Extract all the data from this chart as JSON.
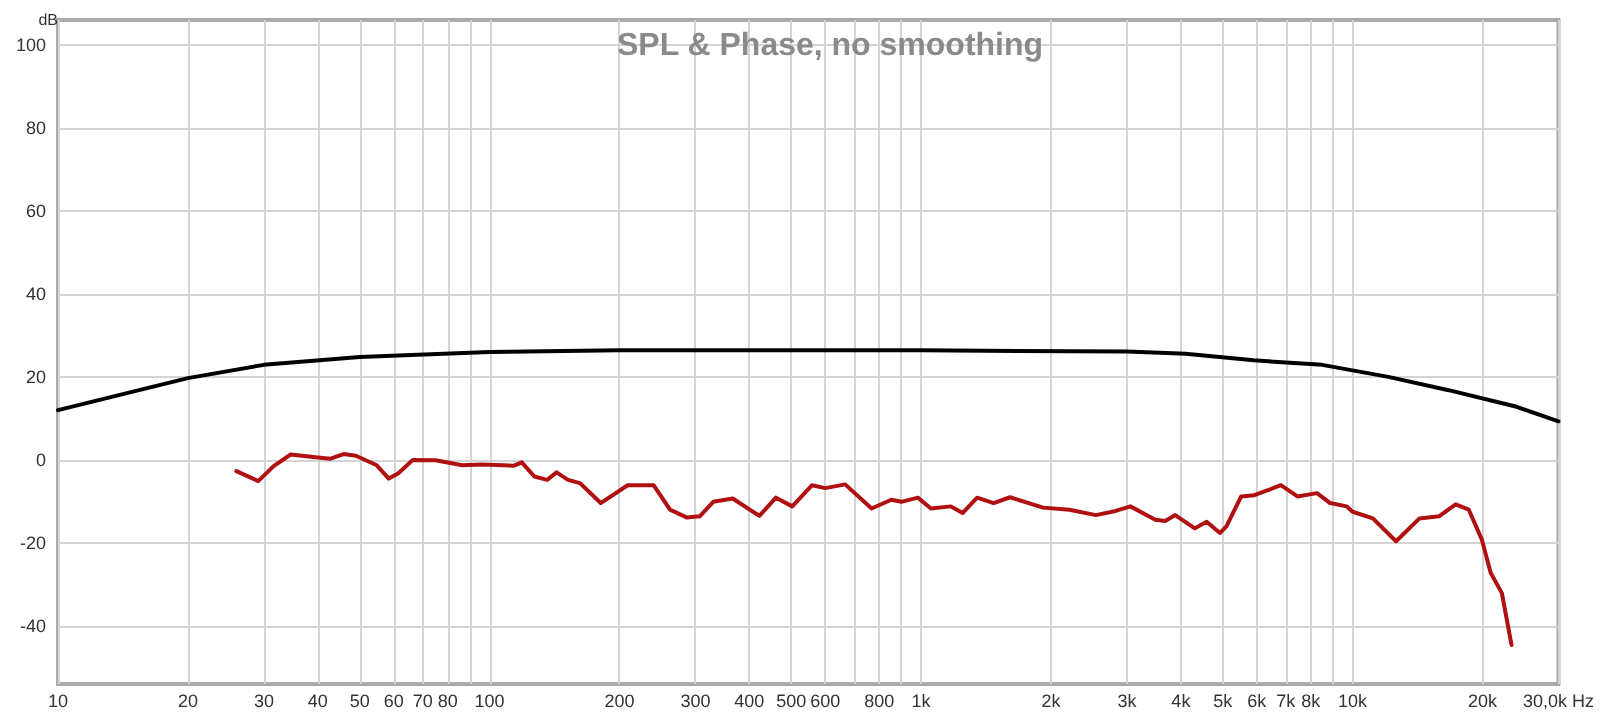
{
  "chart_data": {
    "type": "line",
    "title": "SPL & Phase, no smoothing",
    "ylabel": "dB",
    "log": "x",
    "grid": true,
    "marker": "none",
    "line_style": "solid",
    "xlim": [
      10,
      30000
    ],
    "ylim": [
      -54,
      106
    ],
    "xticks": [
      10,
      20,
      30,
      40,
      50,
      60,
      70,
      80,
      {
        "value": 90,
        "label": null
      },
      100,
      200,
      300,
      400,
      500,
      600,
      {
        "value": 700,
        "label": null
      },
      800,
      {
        "value": 900,
        "label": null
      },
      {
        "value": 1000,
        "label": "1k"
      },
      {
        "value": 2000,
        "label": "2k"
      },
      {
        "value": 3000,
        "label": "3k"
      },
      {
        "value": 4000,
        "label": "4k"
      },
      {
        "value": 5000,
        "label": "5k"
      },
      {
        "value": 6000,
        "label": "6k"
      },
      {
        "value": 7000,
        "label": "7k"
      },
      {
        "value": 8000,
        "label": "8k"
      },
      {
        "value": 9000,
        "label": null
      },
      {
        "value": 10000,
        "label": "10k"
      },
      {
        "value": 20000,
        "label": "20k"
      },
      {
        "value": 30000,
        "label": "30,0k Hz"
      }
    ],
    "yticks": [
      -40,
      -20,
      0,
      20,
      40,
      60,
      80,
      100
    ],
    "series": [
      {
        "color": "#000000",
        "x": [
          10,
          15,
          20,
          30,
          50,
          100,
          200,
          1000,
          3000,
          4100,
          5900,
          8500,
          12100,
          16700,
          24000,
          30000
        ],
        "values": [
          12.0,
          16.5,
          19.7,
          22.9,
          24.8,
          26.0,
          26.4,
          26.4,
          26.1,
          25.6,
          24.0,
          22.9,
          20.0,
          16.8,
          12.8,
          9.3
        ]
      },
      {
        "color": "#b01010",
        "x": [
          25.9,
          29.1,
          31.6,
          34.6,
          40,
          42.8,
          45.9,
          49,
          54.8,
          58.4,
          61.5,
          66.4,
          75,
          86.5,
          96,
          114,
          118.8,
          127,
          136,
          143,
          152,
          162,
          181,
          209,
          240,
          262,
          287,
          307,
          330,
          366,
          408,
          422,
          461,
          503,
          559,
          600,
          667,
          768,
          853,
          900,
          983,
          1054,
          1172,
          1248,
          1349,
          1473,
          1608,
          1918,
          2208,
          2542,
          2825,
          3055,
          3491,
          3680,
          3881,
          4310,
          4590,
          4929,
          5100,
          5520,
          5920,
          6820,
          7450,
          8270,
          8870,
          9690,
          10000,
          11140,
          12610,
          14290,
          15860,
          17330,
          18590,
          19930,
          20890,
          22180,
          23350
        ],
        "values": [
          -2.7,
          -5.1,
          -1.5,
          1.3,
          0.6,
          0.3,
          1.4,
          1.0,
          -1.3,
          -4.5,
          -3.2,
          0,
          -0.1,
          -1.3,
          -1.1,
          -1.4,
          -0.6,
          -4.0,
          -4.8,
          -3.0,
          -4.8,
          -5.6,
          -10.4,
          -6.1,
          -6.1,
          -12,
          -13.9,
          -13.6,
          -10.1,
          -9.3,
          -12.5,
          -13.5,
          -9.1,
          -11.2,
          -6.1,
          -6.8,
          -5.9,
          -11.7,
          -9.6,
          -10.1,
          -9.1,
          -11.7,
          -11.2,
          -12.8,
          -9.1,
          -10.4,
          -9.0,
          -11.5,
          -12,
          -13.3,
          -12.3,
          -11.2,
          -14.4,
          -14.7,
          -13.3,
          -16.5,
          -14.9,
          -17.6,
          -16,
          -8.8,
          -8.5,
          -6.1,
          -8.8,
          -8.0,
          -10.4,
          -11.2,
          -12.5,
          -14.1,
          -19.6,
          -14.1,
          -13.6,
          -10.7,
          -12,
          -19.2,
          -27.2,
          -32.1,
          -44.6
        ]
      }
    ]
  }
}
